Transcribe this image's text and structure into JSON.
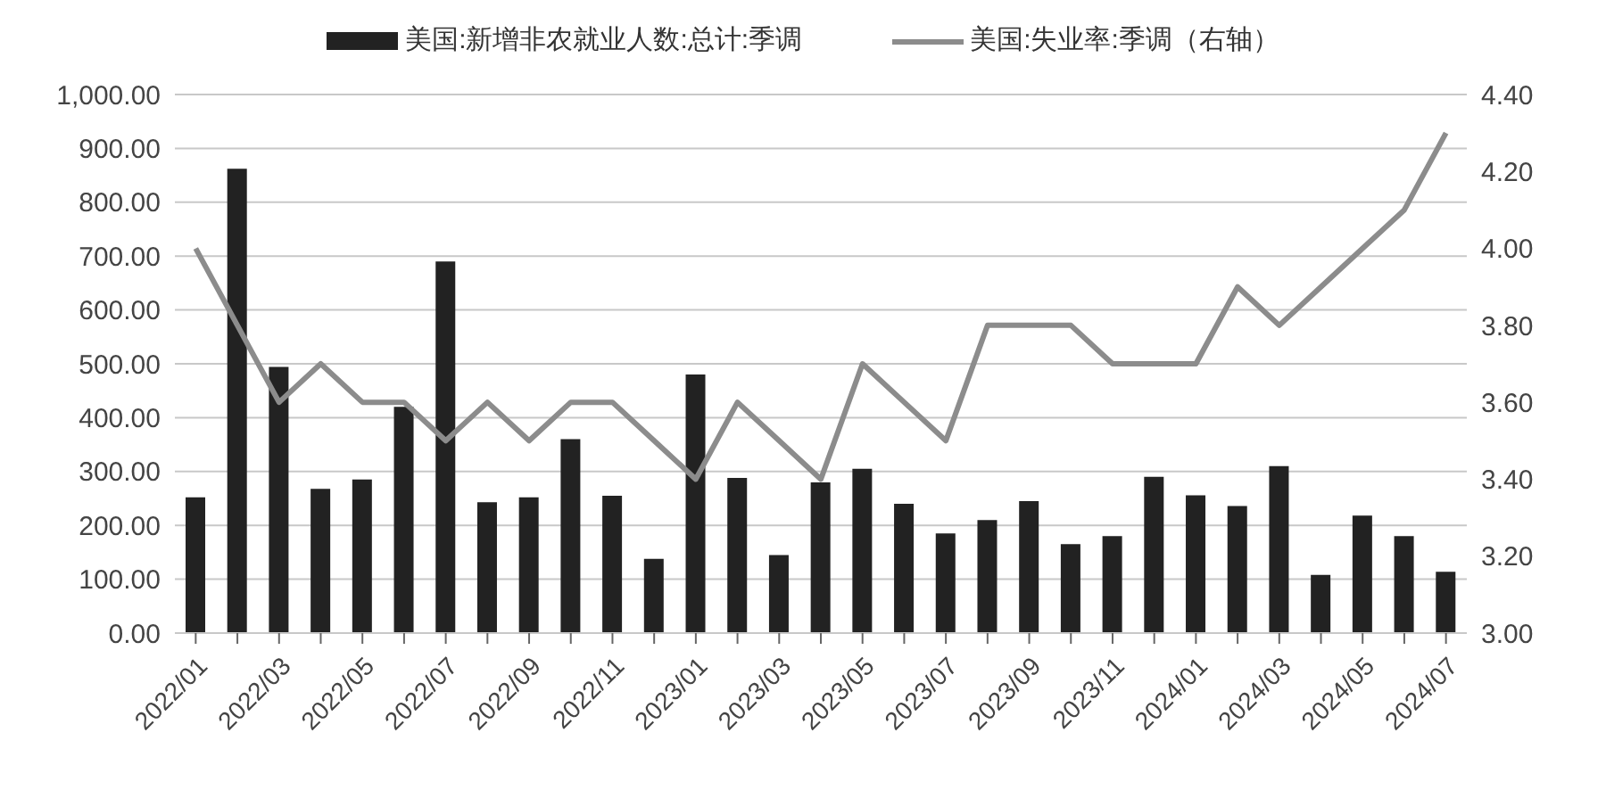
{
  "chart_data": {
    "type": "bar",
    "categories": [
      "2022/01",
      null,
      "2022/03",
      null,
      "2022/05",
      null,
      "2022/07",
      null,
      "2022/09",
      null,
      "2022/11",
      null,
      "2023/01",
      null,
      "2023/03",
      null,
      "2023/05",
      null,
      "2023/07",
      null,
      "2023/09",
      null,
      "2023/11",
      null,
      "2024/01",
      null,
      "2024/03",
      null,
      "2024/05",
      null,
      "2024/07"
    ],
    "series": [
      {
        "name": "美国:新增非农就业人数:总计:季调",
        "color": "#222222",
        "values": [
          252,
          862,
          494,
          268,
          285,
          420,
          690,
          243,
          252,
          360,
          255,
          138,
          480,
          288,
          145,
          280,
          305,
          240,
          185,
          210,
          245,
          165,
          180,
          290,
          256,
          236,
          310,
          108,
          218,
          180,
          114
        ]
      },
      {
        "name": "美国:失业率:季调（右轴）",
        "type": "line",
        "axis": "y2",
        "color": "#8c8c8c",
        "values": [
          4.0,
          3.8,
          3.6,
          3.7,
          3.6,
          3.6,
          3.5,
          3.6,
          3.5,
          3.6,
          3.6,
          3.5,
          3.4,
          3.6,
          3.5,
          3.4,
          3.7,
          3.6,
          3.5,
          3.8,
          3.8,
          3.8,
          3.7,
          3.7,
          3.7,
          3.9,
          3.8,
          3.9,
          4.0,
          4.1,
          4.3
        ]
      }
    ],
    "ylim": [
      0,
      1000
    ],
    "yticks": [
      {
        "value": 0,
        "label": "0.00"
      },
      {
        "value": 100,
        "label": "100.00"
      },
      {
        "value": 200,
        "label": "200.00"
      },
      {
        "value": 300,
        "label": "300.00"
      },
      {
        "value": 400,
        "label": "400.00"
      },
      {
        "value": 500,
        "label": "500.00"
      },
      {
        "value": 600,
        "label": "600.00"
      },
      {
        "value": 700,
        "label": "700.00"
      },
      {
        "value": 800,
        "label": "800.00"
      },
      {
        "value": 900,
        "label": "900.00"
      },
      {
        "value": 1000,
        "label": "1,000.00"
      }
    ],
    "y2lim": [
      3.0,
      4.4
    ],
    "y2ticks": [
      {
        "value": 3.0,
        "label": "3.00"
      },
      {
        "value": 3.2,
        "label": "3.20"
      },
      {
        "value": 3.4,
        "label": "3.40"
      },
      {
        "value": 3.6,
        "label": "3.60"
      },
      {
        "value": 3.8,
        "label": "3.80"
      },
      {
        "value": 4.0,
        "label": "4.00"
      },
      {
        "value": 4.2,
        "label": "4.20"
      },
      {
        "value": 4.4,
        "label": "4.40"
      }
    ],
    "grid": "y",
    "legend": "top",
    "marker": "none",
    "line_style": "solid"
  }
}
